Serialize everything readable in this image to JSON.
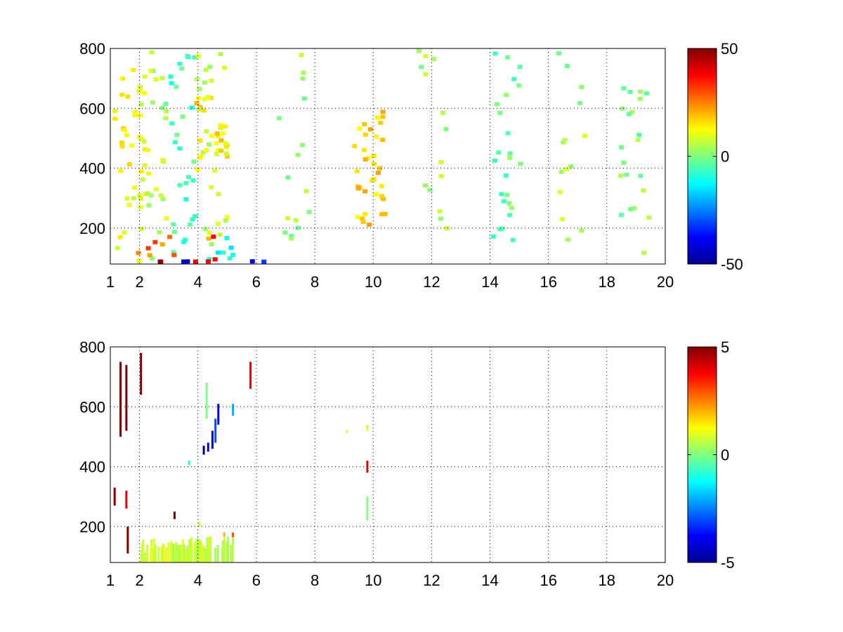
{
  "chart_data": [
    {
      "type": "heatmap",
      "x_ticks": [
        1,
        2,
        4,
        6,
        8,
        10,
        12,
        14,
        16,
        18,
        20
      ],
      "y_ticks": [
        200,
        400,
        600,
        800
      ],
      "xlim": [
        1,
        20
      ],
      "ylim": [
        80,
        800
      ],
      "grid": true,
      "colormap": "jet",
      "colorbar": {
        "ticks": [
          -50,
          0,
          50
        ],
        "range": [
          -50,
          50
        ],
        "position": "right"
      },
      "series": [
        {
          "values": [
            {
              "x": 1.6,
              "ylo": 80,
              "yhi": 800,
              "v": 12,
              "density": 0.55
            },
            {
              "x": 2.5,
              "ylo": 80,
              "yhi": 800,
              "v": 5,
              "density": 0.35
            },
            {
              "x": 3.3,
              "ylo": 80,
              "yhi": 800,
              "v": -6,
              "density": 0.4
            },
            {
              "x": 4.4,
              "ylo": 380,
              "yhi": 650,
              "v": 14,
              "density": 0.75
            },
            {
              "x": 4.4,
              "ylo": 80,
              "yhi": 800,
              "v": 8,
              "density": 0.45
            },
            {
              "x": 3.3,
              "ylo": 85,
              "yhi": 200,
              "v": 28,
              "density": 0.85
            },
            {
              "x": 4.8,
              "ylo": 85,
              "yhi": 200,
              "v": -10,
              "density": 0.6
            },
            {
              "x": 3.0,
              "ylo": 80,
              "yhi": 96,
              "v": 48,
              "density": 0.95
            },
            {
              "x": 4.8,
              "ylo": 80,
              "yhi": 96,
              "v": -40,
              "density": 0.9
            },
            {
              "x": 7.2,
              "ylo": 80,
              "yhi": 800,
              "v": 2,
              "density": 0.22
            },
            {
              "x": 9.8,
              "ylo": 200,
              "yhi": 600,
              "v": 16,
              "density": 0.9
            },
            {
              "x": 12.0,
              "ylo": 80,
              "yhi": 800,
              "v": 3,
              "density": 0.2
            },
            {
              "x": 14.5,
              "ylo": 80,
              "yhi": 800,
              "v": -1,
              "density": 0.35
            },
            {
              "x": 16.8,
              "ylo": 80,
              "yhi": 800,
              "v": 4,
              "density": 0.2
            },
            {
              "x": 18.9,
              "ylo": 80,
              "yhi": 800,
              "v": 1,
              "density": 0.3
            }
          ]
        }
      ]
    },
    {
      "type": "heatmap",
      "x_ticks": [
        1,
        2,
        4,
        6,
        8,
        10,
        12,
        14,
        16,
        18,
        20
      ],
      "y_ticks": [
        200,
        400,
        600,
        800
      ],
      "xlim": [
        1,
        20
      ],
      "ylim": [
        80,
        800
      ],
      "grid": true,
      "colormap": "jet",
      "colorbar": {
        "ticks": [
          -5,
          0,
          5
        ],
        "range": [
          -5,
          5
        ],
        "position": "right"
      },
      "series": [
        {
          "values": [
            {
              "x": 1.35,
              "ylo": 500,
              "yhi": 750,
              "v": 5
            },
            {
              "x": 1.55,
              "ylo": 520,
              "yhi": 740,
              "v": 5
            },
            {
              "x": 1.15,
              "ylo": 270,
              "yhi": 330,
              "v": 5
            },
            {
              "x": 1.55,
              "ylo": 260,
              "yhi": 320,
              "v": 4
            },
            {
              "x": 1.6,
              "ylo": 110,
              "yhi": 200,
              "v": 5
            },
            {
              "x": 2.05,
              "ylo": 640,
              "yhi": 780,
              "v": 5
            },
            {
              "x": 3.2,
              "ylo": 225,
              "yhi": 250,
              "v": 5
            },
            {
              "x": 3.7,
              "ylo": 405,
              "yhi": 420,
              "v": -1
            },
            {
              "x": 4.2,
              "ylo": 440,
              "yhi": 470,
              "v": -5
            },
            {
              "x": 4.35,
              "ylo": 450,
              "yhi": 480,
              "v": -4
            },
            {
              "x": 4.5,
              "ylo": 460,
              "yhi": 520,
              "v": -4
            },
            {
              "x": 4.6,
              "ylo": 480,
              "yhi": 560,
              "v": -3
            },
            {
              "x": 4.7,
              "ylo": 540,
              "yhi": 610,
              "v": -4
            },
            {
              "x": 4.3,
              "ylo": 560,
              "yhi": 680,
              "v": 0
            },
            {
              "x": 5.2,
              "ylo": 570,
              "yhi": 610,
              "v": -2
            },
            {
              "x": 5.8,
              "ylo": 660,
              "yhi": 750,
              "v": 4
            },
            {
              "x": 9.1,
              "ylo": 512,
              "yhi": 522,
              "v": 1
            },
            {
              "x": 9.8,
              "ylo": 520,
              "yhi": 540,
              "v": 1
            },
            {
              "x": 9.8,
              "ylo": 380,
              "yhi": 420,
              "v": 4
            },
            {
              "x": 9.8,
              "ylo": 220,
              "yhi": 300,
              "v": 0
            },
            {
              "x": 5.2,
              "ylo": 160,
              "yhi": 180,
              "v": 3
            },
            {
              "x": 4.9,
              "ylo": 165,
              "yhi": 180,
              "v": 2
            },
            {
              "x": 4.05,
              "ylo": 200,
              "yhi": 215,
              "v": 1
            },
            {
              "x": 3.0,
              "ylo": 80,
              "yhi": 160,
              "v": 0.8
            },
            {
              "x": 4.2,
              "ylo": 80,
              "yhi": 170,
              "v": 0.6
            }
          ]
        }
      ]
    }
  ]
}
